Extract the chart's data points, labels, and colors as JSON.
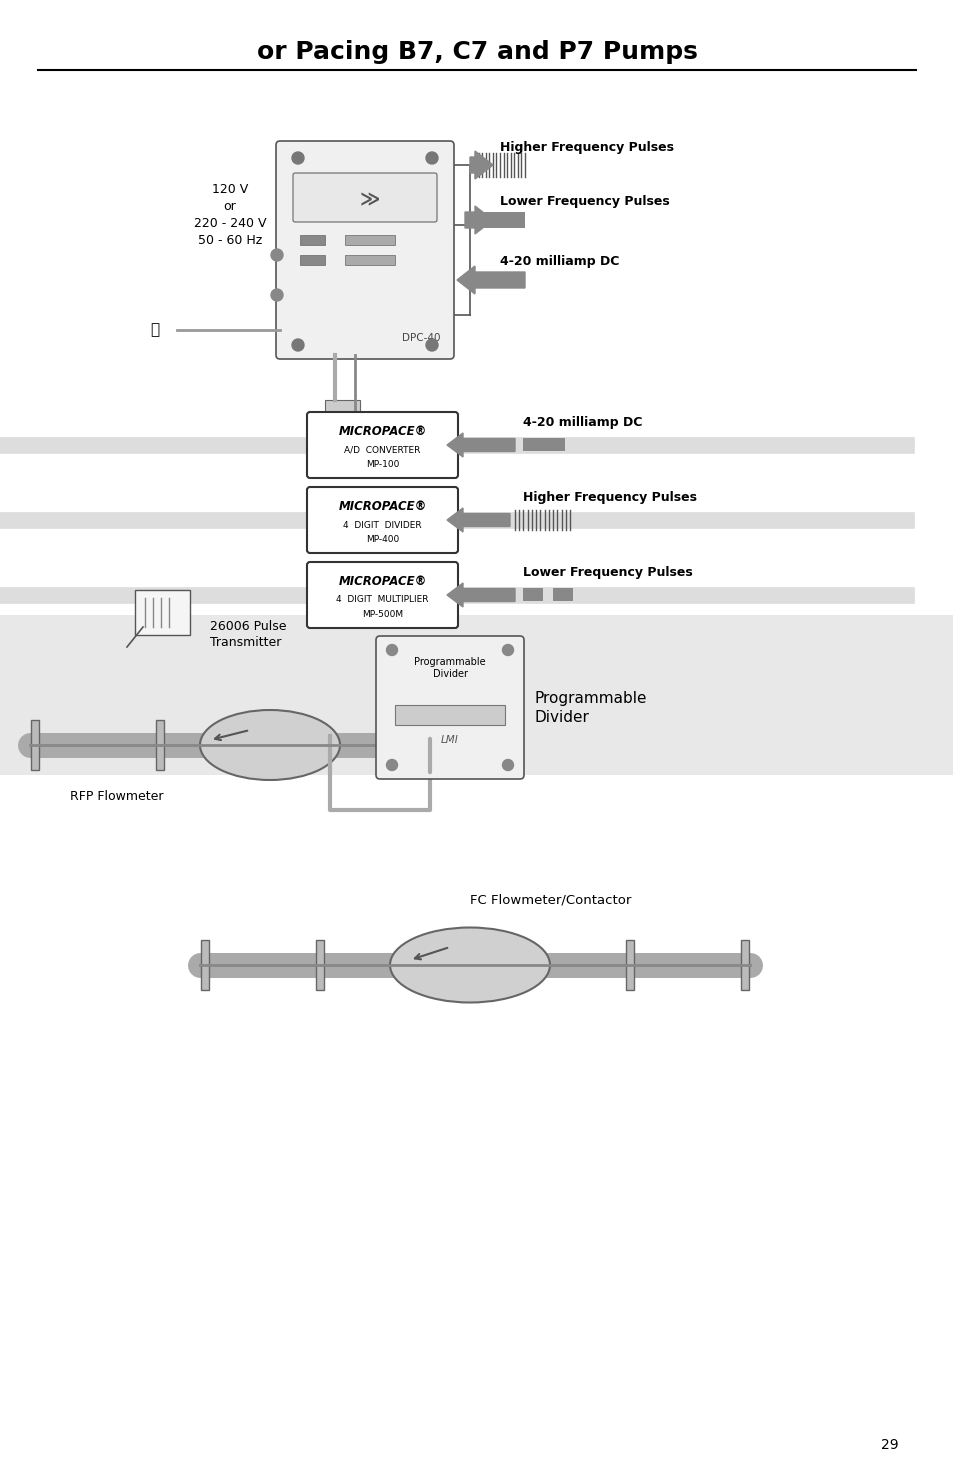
{
  "title": "or Pacing B7, C7 and P7 Pumps",
  "page_number": "29",
  "bg_color": "#ffffff",
  "text_color": "#000000",
  "gray_color": "#888888",
  "light_gray": "#cccccc",
  "mid_gray": "#999999",
  "section1": {
    "voltage_label": "120 V\nor\n220 - 240 V\n50 - 60 Hz",
    "device_label": "DPC-40",
    "arrows": [
      {
        "label": "Higher Frequency Pulses",
        "type": "pulse"
      },
      {
        "label": "Lower Frequency Pulses",
        "type": "solid"
      },
      {
        "label": "4-20 milliamp DC",
        "type": "solid"
      }
    ]
  },
  "section2": {
    "devices": [
      {
        "name": "MICROPACE®",
        "line2": "A/D  CONVERTER",
        "line3": "MP-100",
        "arrow": "4-20 milliamp DC",
        "type": "solid"
      },
      {
        "name": "MICROPACE®",
        "line2": "4  DIGIT  DIVIDER",
        "line3": "MP-400",
        "arrow": "Higher Frequency Pulses",
        "type": "pulse"
      },
      {
        "name": "MICROPACE®",
        "line2": "4  DIGIT  MULTIPLIER",
        "line3": "MP-500M",
        "arrow": "Lower Frequency Pulses",
        "type": "solid_gap"
      }
    ]
  },
  "section3": {
    "pulse_transmitter": "26006 Pulse\nTransmitter",
    "rfp_flowmeter": "RFP Flowmeter",
    "prog_divider": "Programmable\nDivider",
    "prog_divider_box": "Programmable\nDivider"
  },
  "section4": {
    "fc_flowmeter": "FC Flowmeter/Contactor"
  }
}
